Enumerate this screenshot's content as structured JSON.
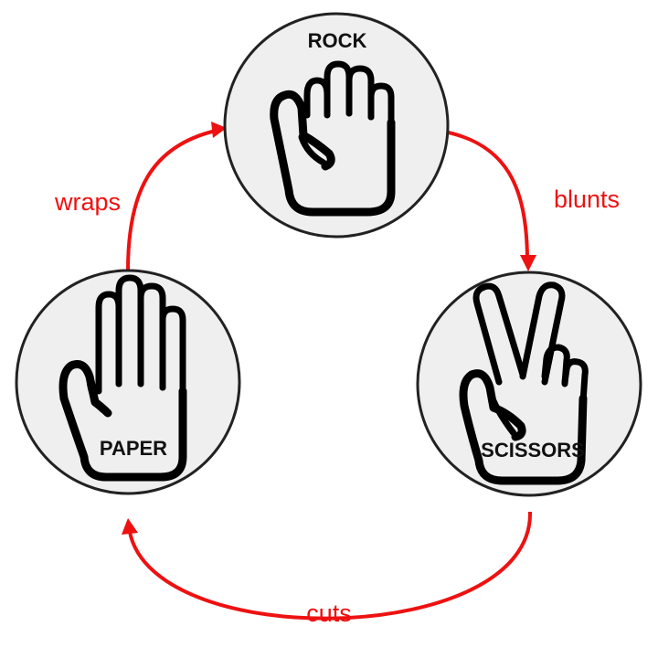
{
  "nodes": {
    "rock": {
      "label": "ROCK"
    },
    "paper": {
      "label": "PAPER"
    },
    "scissors": {
      "label": "SCISSORS"
    }
  },
  "edges": {
    "rock_to_scissors": {
      "label": "blunts"
    },
    "scissors_to_paper": {
      "label": "cuts"
    },
    "paper_to_rock": {
      "label": "wraps"
    }
  },
  "colors": {
    "edge": "#ee1111",
    "node_fill": "#efefef",
    "node_stroke": "#222222"
  }
}
